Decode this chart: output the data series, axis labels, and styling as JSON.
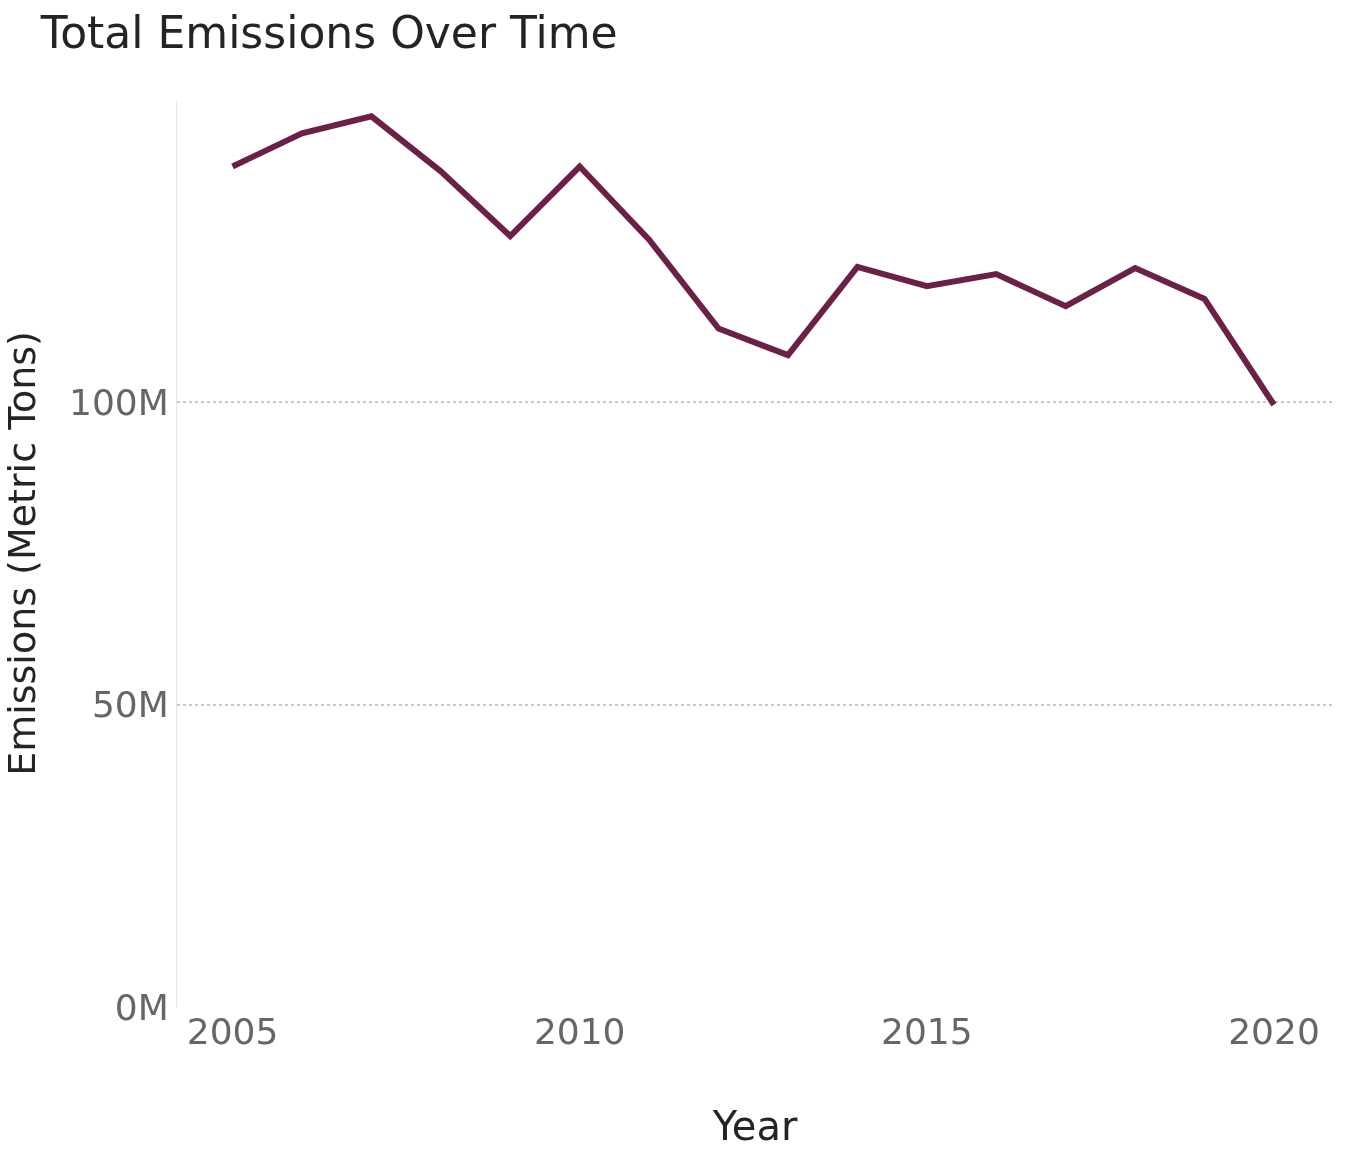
{
  "chart_data": {
    "type": "line",
    "title": "Total Emissions Over Time",
    "xlabel": "Year",
    "ylabel": "Emissions (Metric Tons)",
    "x": [
      2005,
      2006,
      2007,
      2008,
      2009,
      2010,
      2011,
      2012,
      2013,
      2014,
      2015,
      2016,
      2017,
      2018,
      2019,
      2020
    ],
    "series": [
      {
        "color": "#6b2048",
        "values": [
          139,
          144.5,
          147.3,
          138.2,
          127.5,
          139,
          126.9,
          112.2,
          107.8,
          122.4,
          119.2,
          121.2,
          115.9,
          122.2,
          117.1,
          99.6
        ]
      }
    ],
    "xlim": [
      2004.2,
      2020.85
    ],
    "xticks": [
      2005,
      2010,
      2015,
      2020
    ],
    "ylim": [
      0,
      150
    ],
    "yticks": [
      {
        "value": 0,
        "label": "0M"
      },
      {
        "value": 50,
        "label": "50M"
      },
      {
        "value": 100,
        "label": "100M"
      }
    ],
    "grid": "y",
    "marker": "none",
    "line_style": "solid"
  }
}
